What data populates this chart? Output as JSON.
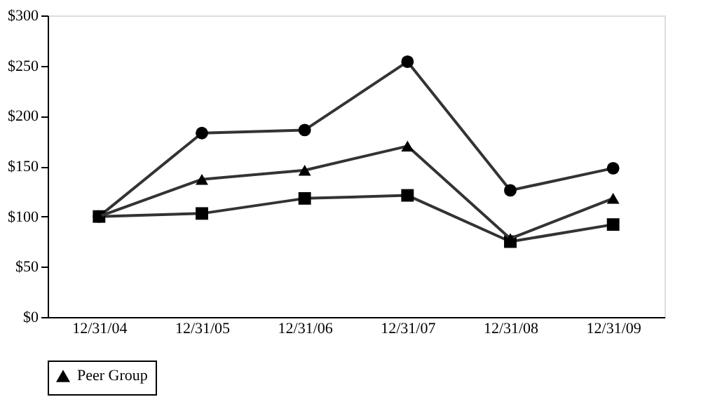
{
  "chart_data": {
    "type": "line",
    "categories": [
      "12/31/04",
      "12/31/05",
      "12/31/06",
      "12/31/07",
      "12/31/08",
      "12/31/09"
    ],
    "series": [
      {
        "color": "#333333",
        "marker": "circle",
        "values": [
          100,
          183,
          186,
          254,
          126,
          148
        ]
      },
      {
        "color": "#333333",
        "marker": "square",
        "values": [
          100,
          103,
          118,
          121,
          75,
          92
        ]
      },
      {
        "name": "Peer Group",
        "color": "#333333",
        "marker": "triangle",
        "values": [
          100,
          137,
          146,
          170,
          78,
          118
        ]
      }
    ],
    "ylim": [
      0,
      300
    ],
    "yticks": [
      {
        "value": 0,
        "label": "$0"
      },
      {
        "value": 50,
        "label": "$50"
      },
      {
        "value": 100,
        "label": "$100"
      },
      {
        "value": 150,
        "label": "$150"
      },
      {
        "value": 200,
        "label": "$200"
      },
      {
        "value": 250,
        "label": "$250"
      },
      {
        "value": 300,
        "label": "$300"
      }
    ],
    "grid": false,
    "legend": "bottom",
    "line_style": "solid"
  }
}
